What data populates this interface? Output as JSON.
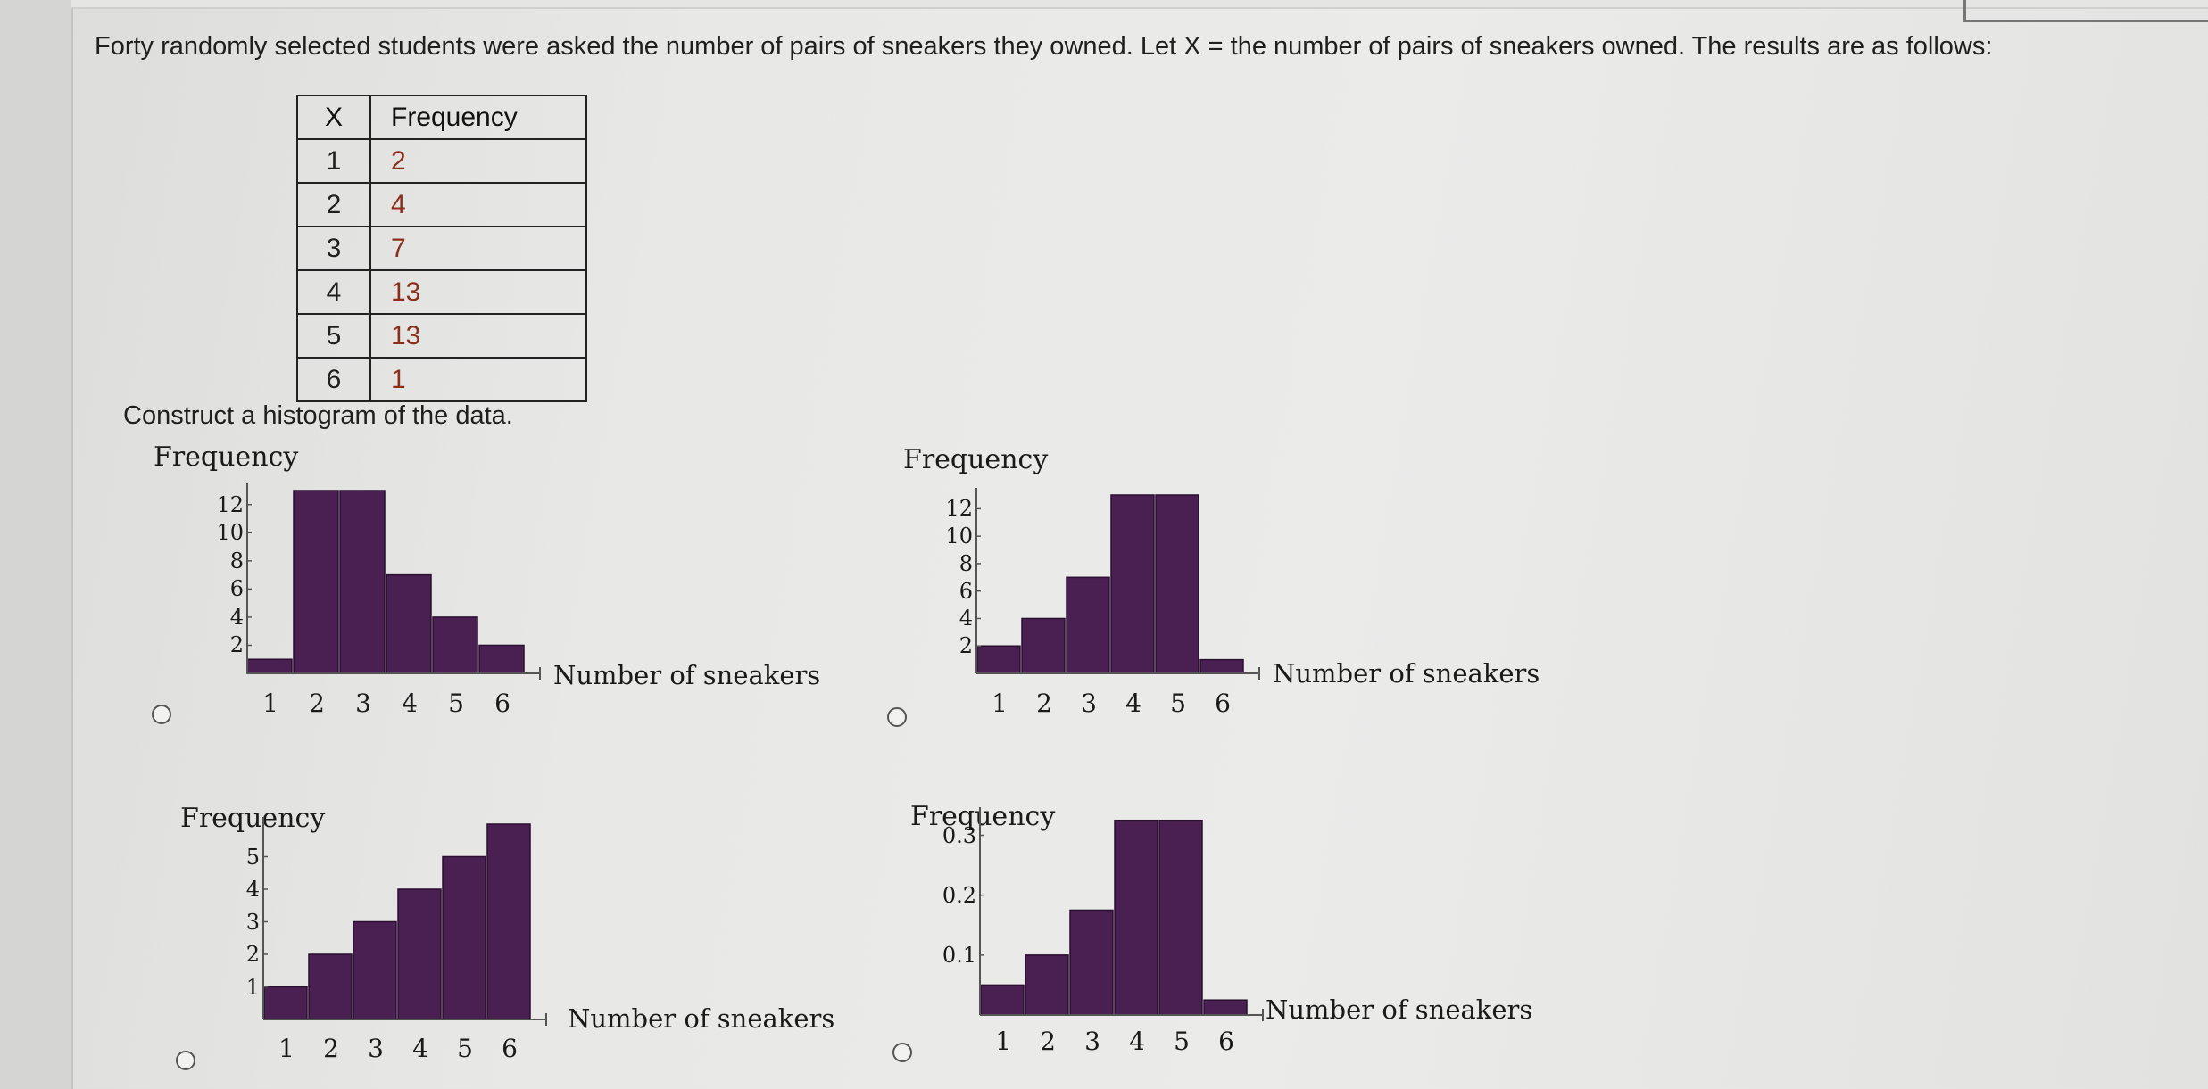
{
  "question_text": "Forty randomly selected students were asked the number of pairs of sneakers they owned. Let X = the number of pairs of sneakers owned. The results are as follows:",
  "table": {
    "headers": [
      "X",
      "Frequency"
    ],
    "rows": [
      [
        "1",
        "2"
      ],
      [
        "2",
        "4"
      ],
      [
        "3",
        "7"
      ],
      [
        "4",
        "13"
      ],
      [
        "5",
        "13"
      ],
      [
        "6",
        "1"
      ]
    ]
  },
  "instruction": "Construct a histogram of the data.",
  "colors": {
    "bar": "#4a2052",
    "bar_edge": "#2a0f30"
  },
  "chart_data": [
    {
      "type": "bar",
      "ylabel": "Frequency",
      "xlabel": "Number of sneakers",
      "categories": [
        "1",
        "2",
        "3",
        "4",
        "5",
        "6"
      ],
      "values": [
        1,
        13,
        13,
        7,
        4,
        2
      ],
      "yticks": [
        "2",
        "4",
        "6",
        "8",
        "10",
        "12"
      ],
      "ylim": [
        0,
        13
      ]
    },
    {
      "type": "bar",
      "ylabel": "Frequency",
      "xlabel": "Number of sneakers",
      "categories": [
        "1",
        "2",
        "3",
        "4",
        "5",
        "6"
      ],
      "values": [
        2,
        4,
        7,
        13,
        13,
        1
      ],
      "yticks": [
        "2",
        "4",
        "6",
        "8",
        "10",
        "12"
      ],
      "ylim": [
        0,
        13
      ]
    },
    {
      "type": "bar",
      "ylabel": "Frequency",
      "xlabel": "Number of sneakers",
      "categories": [
        "1",
        "2",
        "3",
        "4",
        "5",
        "6"
      ],
      "values": [
        1,
        2,
        3,
        4,
        5,
        6
      ],
      "yticks": [
        "1",
        "2",
        "3",
        "4",
        "5"
      ],
      "ylim": [
        0,
        6
      ]
    },
    {
      "type": "bar",
      "ylabel": "Frequency",
      "xlabel": "Number of sneakers",
      "categories": [
        "1",
        "2",
        "3",
        "4",
        "5",
        "6"
      ],
      "values": [
        0.05,
        0.1,
        0.175,
        0.325,
        0.325,
        0.025
      ],
      "yticks": [
        "0.1",
        "0.2",
        "0.3"
      ],
      "ylim": [
        0,
        0.335
      ]
    }
  ]
}
